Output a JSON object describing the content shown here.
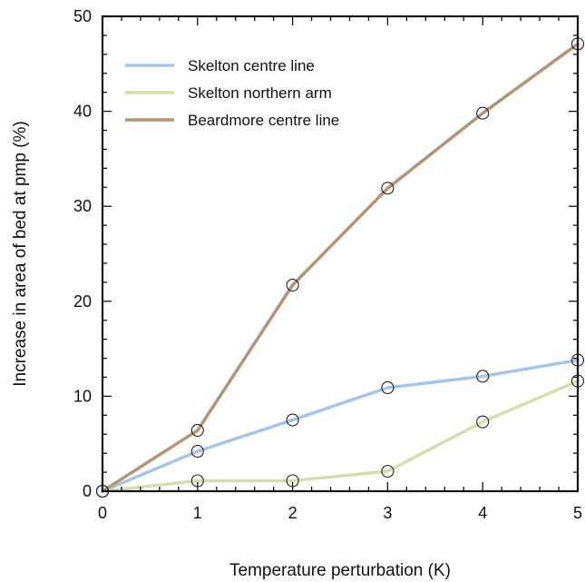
{
  "chart_data": {
    "type": "line",
    "title": "",
    "xlabel": "Temperature perturbation (K)",
    "ylabel": "Increase in area of bed at pmp (%)",
    "xlim": [
      0,
      5
    ],
    "ylim": [
      0,
      50
    ],
    "x_ticks": [
      0,
      1,
      2,
      3,
      4,
      5
    ],
    "y_ticks": [
      0,
      10,
      20,
      30,
      40,
      50
    ],
    "grid": false,
    "legend_position": "top-left",
    "x": [
      0,
      1,
      2,
      3,
      4,
      5
    ],
    "series": [
      {
        "name": "Skelton centre line",
        "color": "#a3c7e8",
        "values": [
          0,
          4.2,
          7.5,
          10.9,
          12.1,
          13.8
        ]
      },
      {
        "name": "Skelton northern arm",
        "color": "#d6dfa8",
        "values": [
          0,
          1.1,
          1.1,
          2.1,
          7.3,
          11.6
        ]
      },
      {
        "name": "Beardmore centre line",
        "color": "#b39572",
        "values": [
          0,
          6.4,
          21.7,
          31.9,
          39.8,
          47.1
        ]
      }
    ],
    "marker": "open-circle"
  }
}
